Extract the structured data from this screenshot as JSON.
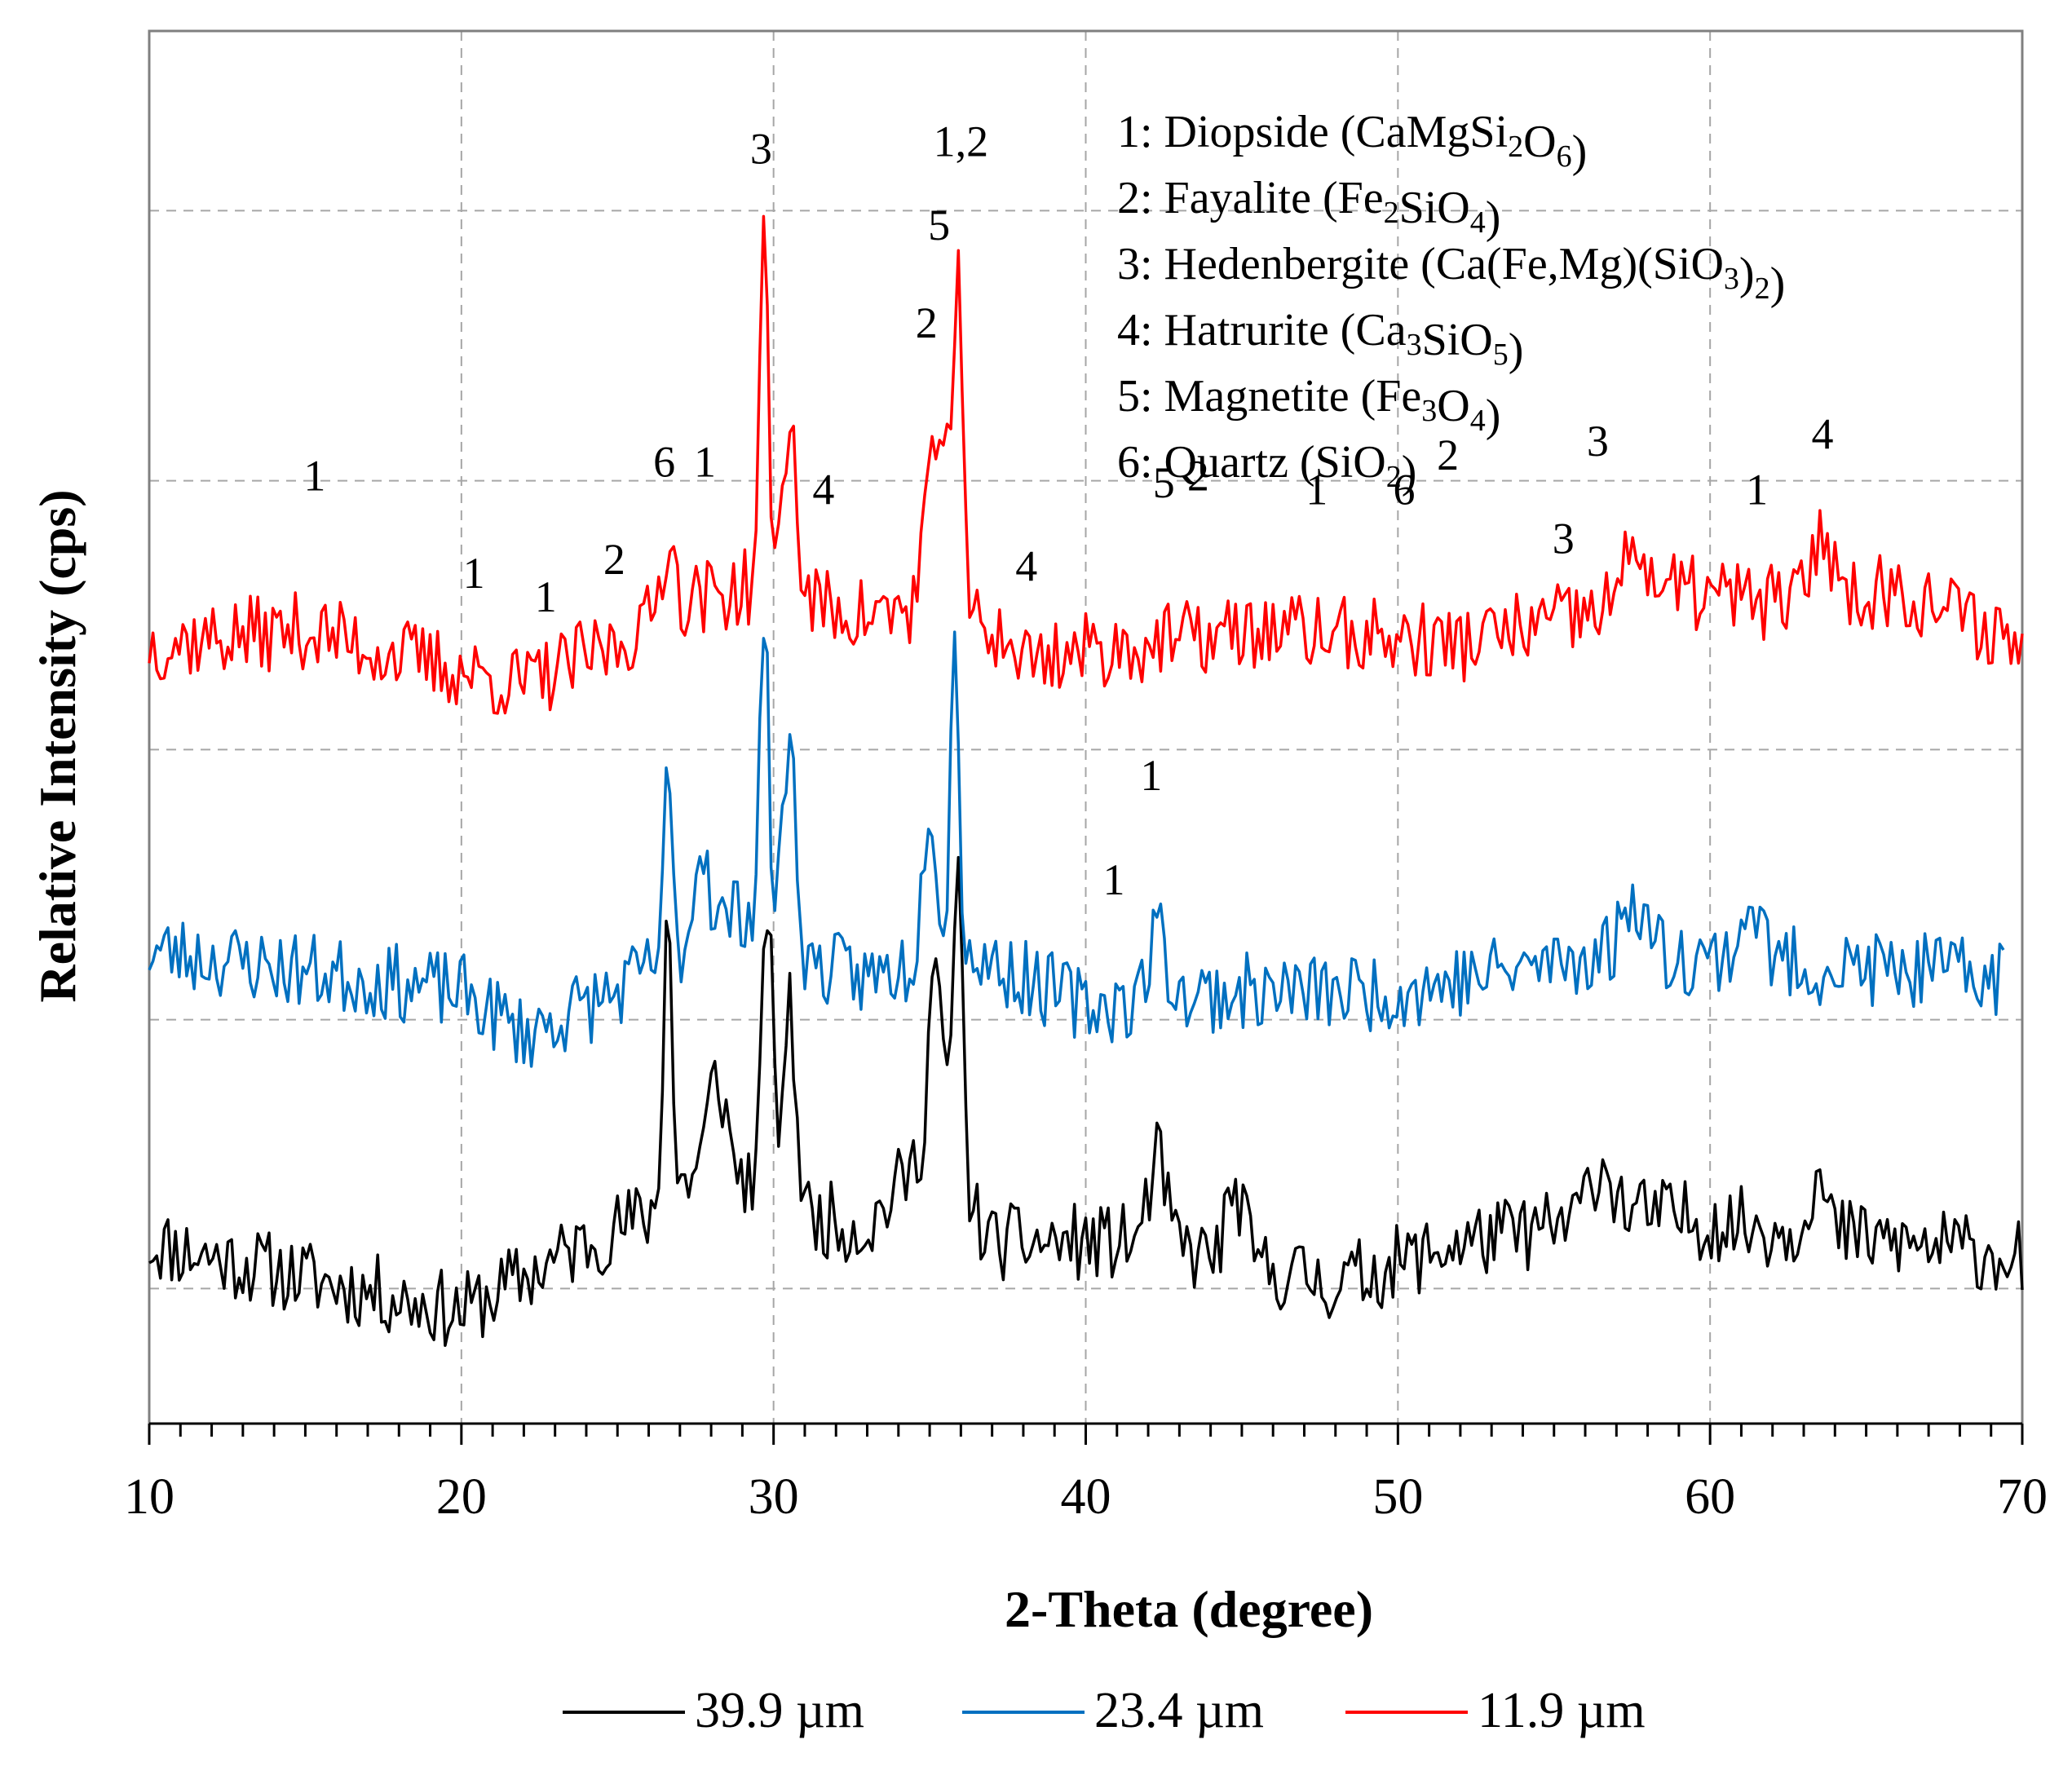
{
  "chart_data": {
    "type": "line",
    "title": "",
    "xlabel": "2-Theta (degree)",
    "ylabel": "Relative Intensity (cps)",
    "xlim": [
      10,
      70
    ],
    "ylim": [
      0,
      1
    ],
    "x_ticks": [
      "10",
      "20",
      "30",
      "40",
      "50",
      "60",
      "70"
    ],
    "x_tick_values": [
      10,
      20,
      30,
      40,
      50,
      60,
      70
    ],
    "y_gridlines": [
      0.097,
      0.29,
      0.484,
      0.677,
      0.871
    ],
    "grid": true,
    "legend_position": "bottom",
    "colors": {
      "black": "#000000",
      "blue": "#0070c0",
      "red": "#ff0000",
      "grid": "#a6a6a6"
    },
    "phases": [
      {
        "id": "1",
        "name": "Diopside",
        "formula": [
          {
            "t": "CaMgSi"
          },
          {
            "s": "2"
          },
          {
            "t": "O"
          },
          {
            "s": "6"
          }
        ]
      },
      {
        "id": "2",
        "name": "Fayalite",
        "formula": [
          {
            "t": "Fe"
          },
          {
            "s": "2"
          },
          {
            "t": "SiO"
          },
          {
            "s": "4"
          }
        ]
      },
      {
        "id": "3",
        "name": "Hedenbergite",
        "formula": [
          {
            "t": "Ca(Fe,Mg)(SiO"
          },
          {
            "s": "3"
          },
          {
            "t": ")"
          },
          {
            "s": "2"
          }
        ]
      },
      {
        "id": "4",
        "name": "Hatrurite",
        "formula": [
          {
            "t": "Ca"
          },
          {
            "s": "3"
          },
          {
            "t": "SiO"
          },
          {
            "s": "5"
          }
        ]
      },
      {
        "id": "5",
        "name": "Magnetite",
        "formula": [
          {
            "t": "Fe"
          },
          {
            "s": "3"
          },
          {
            "t": "O"
          },
          {
            "s": "4"
          }
        ]
      },
      {
        "id": "6",
        "name": "Quartz",
        "formula": [
          {
            "t": "SiO"
          },
          {
            "s": "2"
          }
        ]
      }
    ],
    "series": [
      {
        "name": "39.9 µm",
        "color": "#000000",
        "baseline": 0.1,
        "noise_seed": 11,
        "noise_amp": 0.028,
        "x_end": 70,
        "trend": [
          [
            10,
            0.13
          ],
          [
            20,
            0.08
          ],
          [
            24,
            0.13
          ],
          [
            26,
            0.15
          ],
          [
            28,
            0.19
          ],
          [
            31,
            0.15
          ],
          [
            33,
            0.14
          ],
          [
            35,
            0.2
          ],
          [
            37,
            0.13
          ],
          [
            42,
            0.13
          ],
          [
            48,
            0.1
          ],
          [
            52,
            0.13
          ],
          [
            58,
            0.15
          ],
          [
            70,
            0.12
          ]
        ],
        "peaks": [
          [
            26.6,
            0.22,
            0.18
          ],
          [
            28.2,
            0.06,
            0.4
          ],
          [
            29.8,
            0.21,
            0.22
          ],
          [
            30.5,
            0.14,
            0.3
          ],
          [
            35.2,
            0.14,
            0.3
          ],
          [
            35.9,
            0.23,
            0.22
          ],
          [
            42.3,
            0.06,
            0.4
          ],
          [
            44.8,
            0.05,
            0.4
          ],
          [
            56.5,
            0.04,
            0.6
          ],
          [
            63.4,
            0.04,
            0.4
          ]
        ]
      },
      {
        "name": "23.4 µm",
        "color": "#0070c0",
        "baseline": 0.31,
        "noise_seed": 23,
        "noise_amp": 0.028,
        "x_end": 69.4,
        "trend": [
          [
            10,
            0.34
          ],
          [
            20,
            0.31
          ],
          [
            22,
            0.28
          ],
          [
            25,
            0.31
          ],
          [
            27,
            0.34
          ],
          [
            29,
            0.37
          ],
          [
            31,
            0.33
          ],
          [
            33,
            0.32
          ],
          [
            36,
            0.34
          ],
          [
            40,
            0.3
          ],
          [
            45,
            0.31
          ],
          [
            50,
            0.31
          ],
          [
            57,
            0.34
          ],
          [
            62,
            0.33
          ],
          [
            70,
            0.32
          ]
        ],
        "peaks": [
          [
            26.6,
            0.12,
            0.2
          ],
          [
            27.7,
            0.07,
            0.3
          ],
          [
            29.7,
            0.22,
            0.2
          ],
          [
            30.5,
            0.15,
            0.3
          ],
          [
            35.0,
            0.12,
            0.3
          ],
          [
            35.8,
            0.22,
            0.2
          ],
          [
            42.3,
            0.05,
            0.4
          ],
          [
            57.6,
            0.04,
            0.5
          ],
          [
            61.3,
            0.04,
            0.5
          ]
        ]
      },
      {
        "name": "11.9 µm",
        "color": "#ff0000",
        "baseline": 0.56,
        "noise_seed": 37,
        "noise_amp": 0.028,
        "x_end": 70,
        "trend": [
          [
            10,
            0.56
          ],
          [
            15,
            0.57
          ],
          [
            20,
            0.54
          ],
          [
            22,
            0.53
          ],
          [
            25,
            0.56
          ],
          [
            27,
            0.59
          ],
          [
            29,
            0.6
          ],
          [
            31,
            0.59
          ],
          [
            33,
            0.58
          ],
          [
            36,
            0.59
          ],
          [
            38,
            0.55
          ],
          [
            42,
            0.56
          ],
          [
            46,
            0.57
          ],
          [
            52,
            0.56
          ],
          [
            56,
            0.58
          ],
          [
            58,
            0.6
          ],
          [
            62,
            0.59
          ],
          [
            66,
            0.6
          ],
          [
            70,
            0.56
          ]
        ],
        "peaks": [
          [
            26.6,
            0.05,
            0.3
          ],
          [
            29.7,
            0.25,
            0.2
          ],
          [
            30.5,
            0.13,
            0.3
          ],
          [
            35.0,
            0.1,
            0.3
          ],
          [
            35.5,
            0.14,
            0.2
          ],
          [
            35.9,
            0.23,
            0.2
          ],
          [
            57.6,
            0.04,
            0.4
          ],
          [
            63.6,
            0.05,
            0.4
          ]
        ]
      }
    ],
    "annotations": [
      {
        "text": "1",
        "x": 15.3,
        "y": 0.67
      },
      {
        "text": "1",
        "x": 20.4,
        "y": 0.6
      },
      {
        "text": "1",
        "x": 22.7,
        "y": 0.583
      },
      {
        "text": "2",
        "x": 24.9,
        "y": 0.61
      },
      {
        "text": "6",
        "x": 26.5,
        "y": 0.68
      },
      {
        "text": "1",
        "x": 27.8,
        "y": 0.68
      },
      {
        "text": "3",
        "x": 29.6,
        "y": 0.905
      },
      {
        "text": "4",
        "x": 31.6,
        "y": 0.66
      },
      {
        "text": "2",
        "x": 34.9,
        "y": 0.78
      },
      {
        "text": "5",
        "x": 35.3,
        "y": 0.85
      },
      {
        "text": "1,2",
        "x": 36.0,
        "y": 0.91
      },
      {
        "text": "4",
        "x": 38.1,
        "y": 0.605
      },
      {
        "text": "1",
        "x": 40.9,
        "y": 0.38
      },
      {
        "text": "1",
        "x": 42.1,
        "y": 0.455
      },
      {
        "text": "5",
        "x": 42.5,
        "y": 0.665
      },
      {
        "text": "2",
        "x": 43.6,
        "y": 0.67
      },
      {
        "text": "1",
        "x": 47.4,
        "y": 0.66
      },
      {
        "text": "6",
        "x": 50.2,
        "y": 0.66
      },
      {
        "text": "2",
        "x": 51.6,
        "y": 0.685
      },
      {
        "text": "3",
        "x": 55.3,
        "y": 0.625
      },
      {
        "text": "3",
        "x": 56.4,
        "y": 0.695
      },
      {
        "text": "1",
        "x": 61.5,
        "y": 0.66
      },
      {
        "text": "4",
        "x": 63.6,
        "y": 0.7
      }
    ]
  }
}
